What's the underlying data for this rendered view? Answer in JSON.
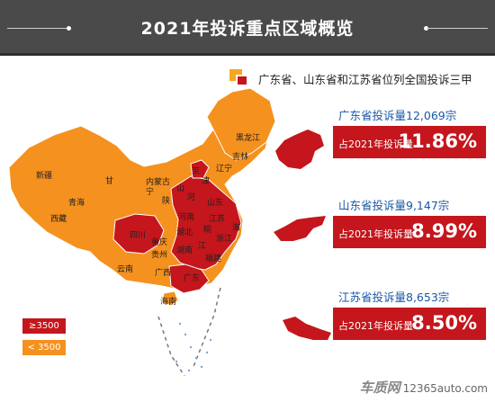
{
  "title": "2021年投诉重点区域概览",
  "subtitle": "广东省、山东省和江苏省位列全国投诉三甲",
  "colors": {
    "high": "#c4161c",
    "low": "#f5911e",
    "header": "#4a4a4a",
    "accent_blue": "#1a57a8"
  },
  "cards": [
    {
      "key": "广东省投诉量12,069宗",
      "label": "占2021年投诉量",
      "percent": "11.86%"
    },
    {
      "key": "山东省投诉量9,147宗",
      "label": "占2021年投诉量",
      "percent": "8.99%"
    },
    {
      "key": "江苏省投诉量8,653宗",
      "label": "占2021年投诉量",
      "percent": "8.50%"
    }
  ],
  "legend": {
    "high": "≥3500",
    "low": "< 3500"
  },
  "provinces": {
    "heilongjiang": "黑龙江",
    "jilin": "吉林",
    "liaoning": "辽宁",
    "neimenggu": "内蒙古",
    "xinjiang": "新疆",
    "xizang": "西藏",
    "qinghai": "青海",
    "gansu": "甘",
    "ningxia": "宁",
    "shaanxi": "陕",
    "shanxi": "山",
    "hebei": "河",
    "beijing": "京",
    "tianjin": "津",
    "shandong": "山东",
    "henan": "河南",
    "jiangsu": "江苏",
    "anhui": "皖",
    "shanghai": "海",
    "zhejiang": "浙江",
    "sichuan": "四川",
    "chongqing": "重庆",
    "hubei": "湖北",
    "hunan": "湖南",
    "jiangxi": "江",
    "guizhou": "贵州",
    "yunnan": "云南",
    "guangxi": "广西",
    "guangdong": "广东",
    "fujian": "福建",
    "hainan": "海南"
  },
  "watermark": {
    "brand": "车质网",
    "site": "12365auto.com"
  }
}
